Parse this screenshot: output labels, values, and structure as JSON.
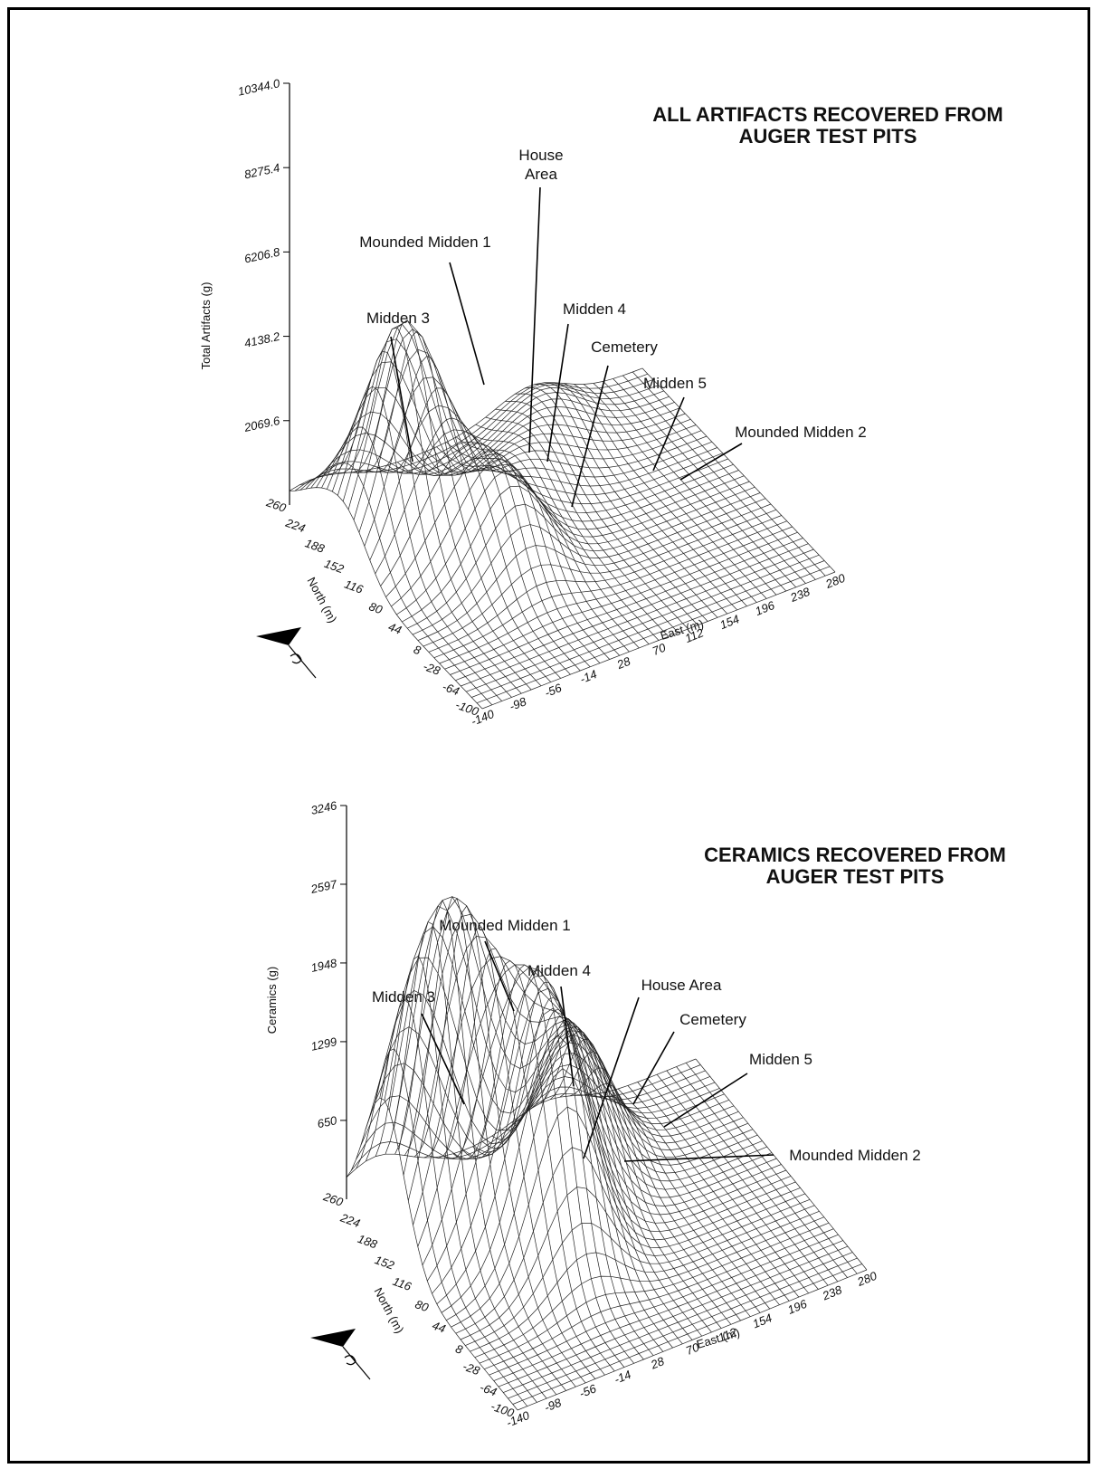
{
  "chart_data": [
    {
      "type": "surface",
      "title_lines": [
        "ALL ARTIFACTS RECOVERED FROM",
        "AUGER TEST PITS"
      ],
      "zlabel": "Total Artifacts (g)",
      "xlabel": "East (m)",
      "ylabel": "North (m)",
      "z_ticks": [
        "2069.6",
        "4138.2",
        "6206.8",
        "8275.4",
        "10344.0"
      ],
      "z_tick_values": [
        2069.6,
        4138.2,
        6206.8,
        8275.4,
        10344.0
      ],
      "zlim": [
        0,
        10344.0
      ],
      "x_ticks": [
        "-140",
        "-98",
        "-56",
        "-14",
        "28",
        "70",
        "112",
        "154",
        "196",
        "238",
        "280"
      ],
      "y_ticks": [
        "-100",
        "-64",
        "-28",
        "8",
        "44",
        "80",
        "116",
        "152",
        "188",
        "224",
        "260"
      ],
      "xlim": [
        -140,
        280
      ],
      "ylim": [
        -100,
        260
      ],
      "peaks": [
        {
          "name": "Mounded Midden 1",
          "x": -75,
          "y": 150,
          "z": 5100
        },
        {
          "name": "Midden 3",
          "x": -120,
          "y": 210,
          "z": 900
        },
        {
          "name": "House Area",
          "x": -35,
          "y": 100,
          "z": 1100
        },
        {
          "name": "Midden 4",
          "x": -5,
          "y": 60,
          "z": 2000
        },
        {
          "name": "Cemetery",
          "x": 55,
          "y": 140,
          "z": 900
        },
        {
          "name": "Midden 5",
          "x": 105,
          "y": 185,
          "z": 700
        },
        {
          "name": "Mounded Midden 2",
          "x": 150,
          "y": 230,
          "z": 800
        }
      ],
      "annotations": [
        {
          "id": "mm1",
          "text": "Mounded Midden 1"
        },
        {
          "id": "house",
          "lines": [
            "House",
            "Area"
          ]
        },
        {
          "id": "m3",
          "text": "Midden 3"
        },
        {
          "id": "m4",
          "text": "Midden 4"
        },
        {
          "id": "cem",
          "text": "Cemetery"
        },
        {
          "id": "m5",
          "text": "Midden 5"
        },
        {
          "id": "mm2",
          "text": "Mounded Midden 2"
        }
      ]
    },
    {
      "type": "surface",
      "title_lines": [
        "CERAMICS RECOVERED FROM",
        "AUGER TEST PITS"
      ],
      "zlabel": "Ceramics (g)",
      "xlabel": "East (m)",
      "ylabel": "North (m)",
      "z_ticks": [
        "650",
        "1299",
        "1948",
        "2597",
        "3246"
      ],
      "z_tick_values": [
        650,
        1299,
        1948,
        2597,
        3246
      ],
      "zlim": [
        0,
        3246
      ],
      "x_ticks": [
        "-140",
        "-98",
        "-56",
        "-14",
        "28",
        "70",
        "112",
        "154",
        "196",
        "238",
        "280"
      ],
      "y_ticks": [
        "-100",
        "-64",
        "-28",
        "8",
        "44",
        "80",
        "116",
        "152",
        "188",
        "224",
        "260"
      ],
      "xlim": [
        -140,
        280
      ],
      "ylim": [
        -100,
        260
      ],
      "peaks": [
        {
          "name": "Mounded Midden 1",
          "x": -70,
          "y": 150,
          "z": 2100
        },
        {
          "name": "Midden 3",
          "x": -110,
          "y": 190,
          "z": 1300
        },
        {
          "name": "Midden 4",
          "x": -20,
          "y": 110,
          "z": 1100
        },
        {
          "name": "House Area",
          "x": 0,
          "y": 60,
          "z": 1400
        },
        {
          "name": "Cemetery",
          "x": 60,
          "y": 140,
          "z": 800
        },
        {
          "name": "Midden 5",
          "x": 100,
          "y": 190,
          "z": 800
        },
        {
          "name": "Mounded Midden 2",
          "x": 40,
          "y": 120,
          "z": 500
        }
      ],
      "annotations": [
        {
          "id": "mm1",
          "text": "Mounded Midden 1"
        },
        {
          "id": "m4",
          "text": "Midden 4"
        },
        {
          "id": "house",
          "text": "House Area"
        },
        {
          "id": "m3",
          "text": "Midden 3"
        },
        {
          "id": "cem",
          "text": "Cemetery"
        },
        {
          "id": "m5",
          "text": "Midden 5"
        },
        {
          "id": "mm2",
          "text": "Mounded Midden 2"
        }
      ]
    }
  ]
}
